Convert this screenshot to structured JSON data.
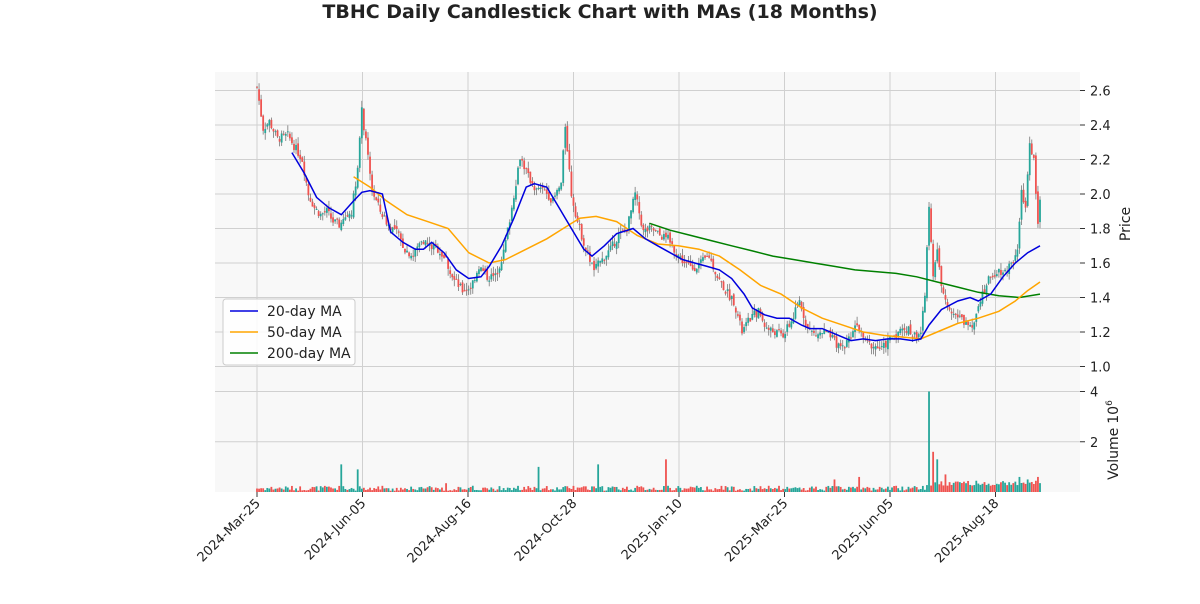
{
  "chart_data": {
    "type": "candlestick",
    "title": "TBHC Daily Candlestick Chart with MAs (18 Months)",
    "price_ylabel": "Price",
    "volume_ylabel": "Volume",
    "volume_exponent": "10",
    "volume_exponent_power": "6",
    "price_ylim": [
      1.0,
      2.7
    ],
    "price_ticks": [
      "1.0",
      "1.2",
      "1.4",
      "1.6",
      "1.8",
      "2.0",
      "2.2",
      "2.4",
      "2.6"
    ],
    "volume_ylim": [
      0,
      4.8
    ],
    "volume_ticks": [
      "2",
      "4"
    ],
    "x_tick_labels": [
      "2024-Mar-25",
      "2024-Jun-05",
      "2024-Aug-16",
      "2024-Oct-28",
      "2025-Jan-10",
      "2025-Mar-25",
      "2025-Jun-05",
      "2025-Aug-18"
    ],
    "legend": [
      {
        "name": "20-day MA",
        "color": "#0000dd"
      },
      {
        "name": "50-day MA",
        "color": "#ffa500"
      },
      {
        "name": "200-day MA",
        "color": "#008000"
      }
    ],
    "up_color": "#26a69a",
    "down_color": "#ef5350",
    "grid": true,
    "legend_position": "lower-left",
    "price_path": [
      [
        0,
        2.62
      ],
      [
        3,
        2.38
      ],
      [
        6,
        2.42
      ],
      [
        10,
        2.32
      ],
      [
        15,
        2.34
      ],
      [
        18,
        2.28
      ],
      [
        22,
        2.2
      ],
      [
        25,
        2.0
      ],
      [
        28,
        1.92
      ],
      [
        31,
        1.88
      ],
      [
        34,
        1.9
      ],
      [
        37,
        1.84
      ],
      [
        40,
        1.82
      ],
      [
        43,
        1.86
      ],
      [
        46,
        1.9
      ],
      [
        49,
        2.15
      ],
      [
        51,
        2.48
      ],
      [
        53,
        2.3
      ],
      [
        56,
        2.02
      ],
      [
        60,
        1.9
      ],
      [
        64,
        1.82
      ],
      [
        68,
        1.78
      ],
      [
        72,
        1.68
      ],
      [
        76,
        1.64
      ],
      [
        80,
        1.74
      ],
      [
        84,
        1.7
      ],
      [
        88,
        1.68
      ],
      [
        92,
        1.62
      ],
      [
        96,
        1.5
      ],
      [
        100,
        1.44
      ],
      [
        104,
        1.46
      ],
      [
        108,
        1.58
      ],
      [
        112,
        1.52
      ],
      [
        116,
        1.52
      ],
      [
        120,
        1.66
      ],
      [
        124,
        1.92
      ],
      [
        128,
        2.22
      ],
      [
        132,
        2.1
      ],
      [
        136,
        2.02
      ],
      [
        140,
        2.02
      ],
      [
        144,
        1.96
      ],
      [
        148,
        2.06
      ],
      [
        150,
        2.4
      ],
      [
        153,
        2.0
      ],
      [
        156,
        1.84
      ],
      [
        160,
        1.68
      ],
      [
        164,
        1.56
      ],
      [
        168,
        1.62
      ],
      [
        172,
        1.68
      ],
      [
        176,
        1.76
      ],
      [
        180,
        1.8
      ],
      [
        184,
        2.0
      ],
      [
        188,
        1.78
      ],
      [
        192,
        1.8
      ],
      [
        196,
        1.76
      ],
      [
        200,
        1.74
      ],
      [
        204,
        1.66
      ],
      [
        208,
        1.6
      ],
      [
        212,
        1.57
      ],
      [
        216,
        1.6
      ],
      [
        220,
        1.64
      ],
      [
        224,
        1.52
      ],
      [
        228,
        1.44
      ],
      [
        232,
        1.38
      ],
      [
        236,
        1.2
      ],
      [
        240,
        1.28
      ],
      [
        244,
        1.32
      ],
      [
        248,
        1.22
      ],
      [
        252,
        1.2
      ],
      [
        256,
        1.18
      ],
      [
        260,
        1.26
      ],
      [
        264,
        1.38
      ],
      [
        268,
        1.22
      ],
      [
        272,
        1.18
      ],
      [
        276,
        1.2
      ],
      [
        280,
        1.16
      ],
      [
        284,
        1.1
      ],
      [
        288,
        1.16
      ],
      [
        292,
        1.26
      ],
      [
        296,
        1.14
      ],
      [
        300,
        1.12
      ],
      [
        304,
        1.1
      ],
      [
        308,
        1.16
      ],
      [
        312,
        1.2
      ],
      [
        316,
        1.22
      ],
      [
        320,
        1.18
      ],
      [
        323,
        1.2
      ],
      [
        325,
        1.4
      ],
      [
        327,
        1.95
      ],
      [
        329,
        1.52
      ],
      [
        331,
        1.7
      ],
      [
        333,
        1.45
      ],
      [
        336,
        1.36
      ],
      [
        340,
        1.3
      ],
      [
        344,
        1.26
      ],
      [
        348,
        1.24
      ],
      [
        352,
        1.4
      ],
      [
        356,
        1.5
      ],
      [
        360,
        1.56
      ],
      [
        364,
        1.55
      ],
      [
        368,
        1.62
      ],
      [
        370,
        1.7
      ],
      [
        372,
        2.0
      ],
      [
        374,
        1.92
      ],
      [
        376,
        2.3
      ],
      [
        378,
        2.2
      ],
      [
        380,
        1.85
      ],
      [
        381,
        1.95
      ]
    ],
    "ma20": [
      [
        17,
        2.24
      ],
      [
        23,
        2.12
      ],
      [
        29,
        1.98
      ],
      [
        35,
        1.92
      ],
      [
        41,
        1.88
      ],
      [
        47,
        1.96
      ],
      [
        51,
        2.01
      ],
      [
        55,
        2.02
      ],
      [
        61,
        2.0
      ],
      [
        65,
        1.78
      ],
      [
        71,
        1.72
      ],
      [
        77,
        1.68
      ],
      [
        81,
        1.68
      ],
      [
        85,
        1.72
      ],
      [
        91,
        1.66
      ],
      [
        97,
        1.56
      ],
      [
        103,
        1.51
      ],
      [
        109,
        1.52
      ],
      [
        113,
        1.58
      ],
      [
        119,
        1.7
      ],
      [
        125,
        1.86
      ],
      [
        131,
        2.04
      ],
      [
        135,
        2.06
      ],
      [
        141,
        2.04
      ],
      [
        147,
        1.92
      ],
      [
        153,
        1.8
      ],
      [
        159,
        1.68
      ],
      [
        163,
        1.64
      ],
      [
        169,
        1.7
      ],
      [
        175,
        1.77
      ],
      [
        183,
        1.8
      ],
      [
        189,
        1.74
      ],
      [
        195,
        1.7
      ],
      [
        201,
        1.66
      ],
      [
        207,
        1.62
      ],
      [
        213,
        1.6
      ],
      [
        219,
        1.58
      ],
      [
        225,
        1.56
      ],
      [
        231,
        1.51
      ],
      [
        237,
        1.42
      ],
      [
        241,
        1.34
      ],
      [
        247,
        1.3
      ],
      [
        253,
        1.28
      ],
      [
        259,
        1.28
      ],
      [
        265,
        1.24
      ],
      [
        269,
        1.22
      ],
      [
        275,
        1.22
      ],
      [
        283,
        1.18
      ],
      [
        289,
        1.15
      ],
      [
        295,
        1.16
      ],
      [
        301,
        1.15
      ],
      [
        307,
        1.16
      ],
      [
        313,
        1.16
      ],
      [
        319,
        1.15
      ],
      [
        323,
        1.16
      ],
      [
        327,
        1.24
      ],
      [
        333,
        1.33
      ],
      [
        341,
        1.38
      ],
      [
        347,
        1.4
      ],
      [
        351,
        1.38
      ],
      [
        357,
        1.42
      ],
      [
        363,
        1.52
      ],
      [
        369,
        1.6
      ],
      [
        375,
        1.66
      ],
      [
        381,
        1.7
      ]
    ],
    "ma50": [
      [
        47,
        2.1
      ],
      [
        55,
        2.04
      ],
      [
        63,
        1.96
      ],
      [
        73,
        1.88
      ],
      [
        83,
        1.84
      ],
      [
        93,
        1.8
      ],
      [
        103,
        1.66
      ],
      [
        113,
        1.6
      ],
      [
        121,
        1.62
      ],
      [
        131,
        1.68
      ],
      [
        141,
        1.74
      ],
      [
        149,
        1.8
      ],
      [
        157,
        1.86
      ],
      [
        165,
        1.87
      ],
      [
        175,
        1.84
      ],
      [
        185,
        1.76
      ],
      [
        195,
        1.71
      ],
      [
        205,
        1.7
      ],
      [
        215,
        1.68
      ],
      [
        225,
        1.64
      ],
      [
        235,
        1.56
      ],
      [
        245,
        1.47
      ],
      [
        255,
        1.42
      ],
      [
        265,
        1.34
      ],
      [
        275,
        1.28
      ],
      [
        285,
        1.24
      ],
      [
        295,
        1.2
      ],
      [
        305,
        1.18
      ],
      [
        315,
        1.17
      ],
      [
        323,
        1.16
      ],
      [
        331,
        1.2
      ],
      [
        341,
        1.25
      ],
      [
        351,
        1.28
      ],
      [
        361,
        1.32
      ],
      [
        369,
        1.38
      ],
      [
        375,
        1.44
      ],
      [
        381,
        1.49
      ]
    ],
    "ma200": [
      [
        191,
        1.83
      ],
      [
        201,
        1.79
      ],
      [
        211,
        1.76
      ],
      [
        221,
        1.73
      ],
      [
        231,
        1.7
      ],
      [
        241,
        1.67
      ],
      [
        251,
        1.64
      ],
      [
        261,
        1.62
      ],
      [
        271,
        1.6
      ],
      [
        281,
        1.58
      ],
      [
        291,
        1.56
      ],
      [
        301,
        1.55
      ],
      [
        311,
        1.54
      ],
      [
        321,
        1.52
      ],
      [
        331,
        1.49
      ],
      [
        341,
        1.46
      ],
      [
        351,
        1.43
      ],
      [
        361,
        1.41
      ],
      [
        371,
        1.4
      ],
      [
        381,
        1.42
      ]
    ],
    "volume_spikes": [
      [
        41,
        1.1
      ],
      [
        49,
        0.9
      ],
      [
        92,
        0.35
      ],
      [
        137,
        1.0
      ],
      [
        166,
        1.1
      ],
      [
        199,
        1.3
      ],
      [
        281,
        0.5
      ],
      [
        293,
        0.6
      ],
      [
        327,
        4.0
      ],
      [
        329,
        1.6
      ],
      [
        331,
        1.3
      ],
      [
        335,
        0.7
      ],
      [
        371,
        0.6
      ],
      [
        375,
        0.5
      ],
      [
        380,
        0.6
      ]
    ]
  }
}
